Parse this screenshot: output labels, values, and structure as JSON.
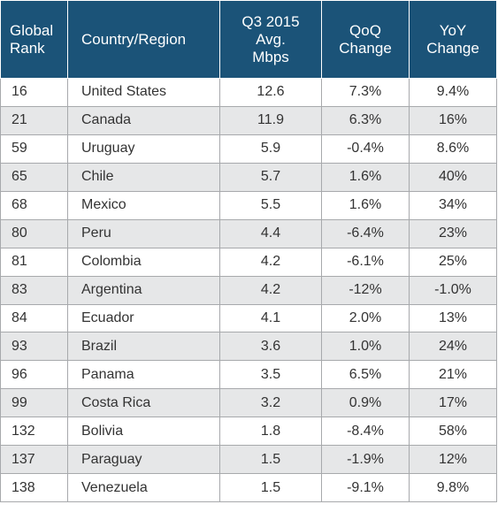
{
  "table": {
    "headers": {
      "rank": [
        "Global",
        "Rank"
      ],
      "country": [
        "Country/Region"
      ],
      "speed": [
        "Q3 2015",
        "Avg.",
        "Mbps"
      ],
      "qoq": [
        "QoQ",
        "Change"
      ],
      "yoy": [
        "YoY",
        "Change"
      ]
    },
    "rows": [
      {
        "rank": "16",
        "country": "United States",
        "speed": "12.6",
        "qoq": "7.3%",
        "yoy": "9.4%"
      },
      {
        "rank": "21",
        "country": "Canada",
        "speed": "11.9",
        "qoq": "6.3%",
        "yoy": "16%"
      },
      {
        "rank": "59",
        "country": "Uruguay",
        "speed": "5.9",
        "qoq": "-0.4%",
        "yoy": "8.6%"
      },
      {
        "rank": "65",
        "country": "Chile",
        "speed": "5.7",
        "qoq": "1.6%",
        "yoy": "40%"
      },
      {
        "rank": "68",
        "country": "Mexico",
        "speed": "5.5",
        "qoq": "1.6%",
        "yoy": "34%"
      },
      {
        "rank": "80",
        "country": "Peru",
        "speed": "4.4",
        "qoq": "-6.4%",
        "yoy": "23%"
      },
      {
        "rank": "81",
        "country": "Colombia",
        "speed": "4.2",
        "qoq": "-6.1%",
        "yoy": "25%"
      },
      {
        "rank": "83",
        "country": "Argentina",
        "speed": "4.2",
        "qoq": "-12%",
        "yoy": "-1.0%"
      },
      {
        "rank": "84",
        "country": "Ecuador",
        "speed": "4.1",
        "qoq": "2.0%",
        "yoy": "13%"
      },
      {
        "rank": "93",
        "country": "Brazil",
        "speed": "3.6",
        "qoq": "1.0%",
        "yoy": "24%"
      },
      {
        "rank": "96",
        "country": "Panama",
        "speed": "3.5",
        "qoq": "6.5%",
        "yoy": "21%"
      },
      {
        "rank": "99",
        "country": "Costa Rica",
        "speed": "3.2",
        "qoq": "0.9%",
        "yoy": "17%"
      },
      {
        "rank": "132",
        "country": "Bolivia",
        "speed": "1.8",
        "qoq": "-8.4%",
        "yoy": "58%"
      },
      {
        "rank": "137",
        "country": "Paraguay",
        "speed": "1.5",
        "qoq": "-1.9%",
        "yoy": "12%"
      },
      {
        "rank": "138",
        "country": "Venezuela",
        "speed": "1.5",
        "qoq": "-9.1%",
        "yoy": "9.8%"
      }
    ]
  },
  "colors": {
    "header_background": "#1b5378",
    "header_text": "#ffffff",
    "row_alt_background": "#e6e7e8",
    "grid_line": "#a7a9ac",
    "body_text": "#333333"
  }
}
